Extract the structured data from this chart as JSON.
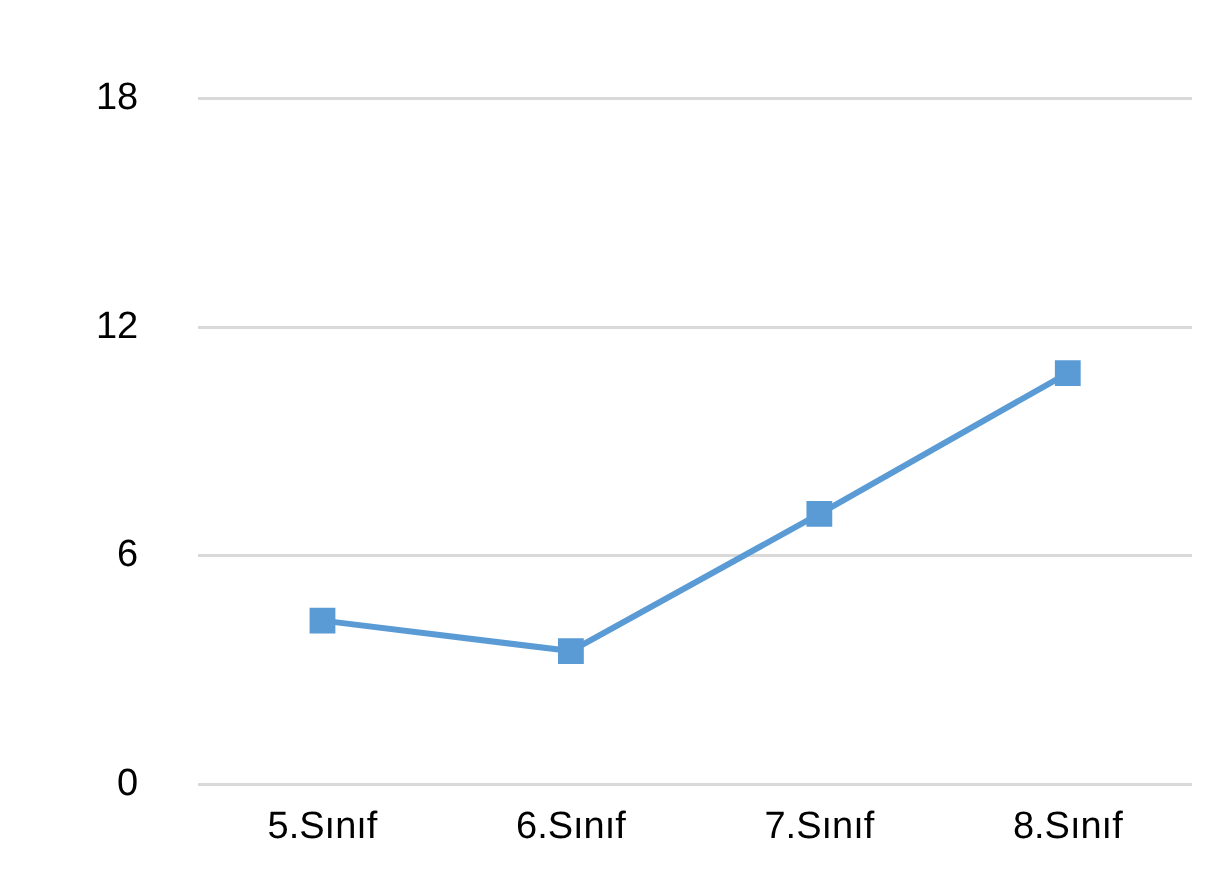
{
  "chart_data": {
    "type": "line",
    "categories": [
      "5.Sınıf",
      "6.Sınıf",
      "7.Sınıf",
      "8.Sınıf"
    ],
    "series": [
      {
        "color": "#5b9bd5",
        "values": [
          4.3,
          3.5,
          7.1,
          10.8
        ]
      }
    ],
    "ylim": [
      0,
      18
    ],
    "yticks": [
      0,
      6,
      12,
      18
    ],
    "grid": "y",
    "legend": false,
    "marker": "square",
    "line_style": "solid"
  }
}
